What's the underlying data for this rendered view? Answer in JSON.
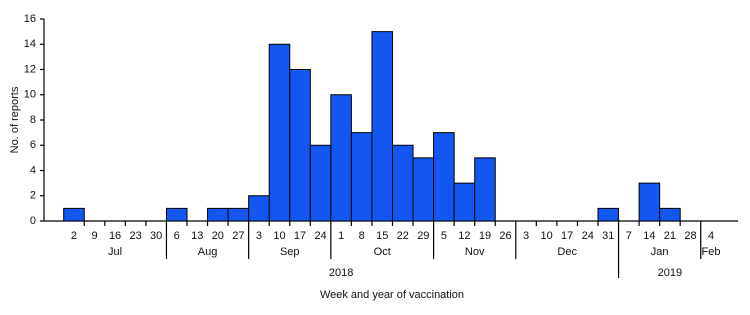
{
  "chart_data": {
    "type": "bar",
    "ylabel": "No. of reports",
    "xlabel": "Week and year of vaccination",
    "years": [
      {
        "label": "2018",
        "months": [
          {
            "label": "Jul",
            "categories": [
              "2",
              "9",
              "16",
              "23",
              "30"
            ]
          },
          {
            "label": "Aug",
            "categories": [
              "6",
              "13",
              "20",
              "27"
            ]
          },
          {
            "label": "Sep",
            "categories": [
              "3",
              "10",
              "17",
              "24"
            ]
          },
          {
            "label": "Oct",
            "categories": [
              "1",
              "8",
              "15",
              "22",
              "29"
            ]
          },
          {
            "label": "Nov",
            "categories": [
              "5",
              "12",
              "19",
              "26"
            ]
          },
          {
            "label": "Dec",
            "categories": [
              "3",
              "10",
              "17",
              "24",
              "31"
            ]
          }
        ]
      },
      {
        "label": "2019",
        "months": [
          {
            "label": "Jan",
            "categories": [
              "7",
              "14",
              "21",
              "28"
            ]
          },
          {
            "label": "Feb",
            "categories": [
              "4"
            ]
          }
        ]
      }
    ],
    "values": [
      1,
      0,
      0,
      0,
      0,
      1,
      0,
      1,
      1,
      2,
      14,
      12,
      6,
      10,
      7,
      15,
      6,
      5,
      7,
      3,
      5,
      0,
      0,
      0,
      0,
      0,
      1,
      0,
      3,
      1,
      0,
      0
    ],
    "color": "#1457f0",
    "ylim": [
      0,
      16
    ],
    "yticks": [
      0,
      2,
      4,
      6,
      8,
      10,
      12,
      14,
      16
    ]
  }
}
